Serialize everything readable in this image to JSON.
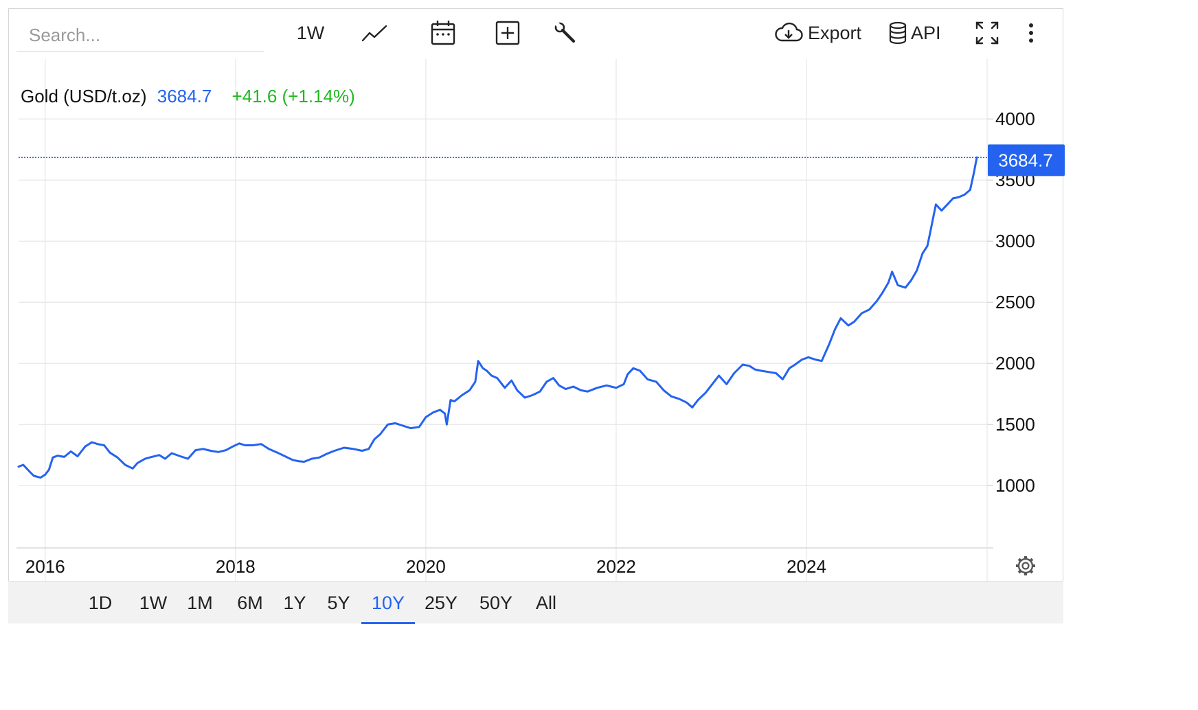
{
  "toolbar": {
    "search_placeholder": "Search...",
    "interval_label": "1W",
    "export_label": "Export",
    "api_label": "API",
    "icons": [
      "line-chart-icon",
      "calendar-icon",
      "add-icon",
      "wrench-icon",
      "cloud-download-icon",
      "database-icon",
      "fullscreen-icon",
      "more-vertical-icon",
      "gear-icon"
    ]
  },
  "legend": {
    "name": "Gold (USD/t.oz)",
    "value": "3684.7",
    "change": "+41.6 (+1.14%)"
  },
  "price_label": "3684.7",
  "range_buttons": [
    "1D",
    "1W",
    "1M",
    "6M",
    "1Y",
    "5Y",
    "10Y",
    "25Y",
    "50Y",
    "All"
  ],
  "active_range": "10Y",
  "colors": {
    "series": "#2463f0",
    "change_positive": "#1fba1f",
    "grid": "#e6e6e6",
    "bottom_bar": "#f2f2f2"
  },
  "chart_data": {
    "type": "line",
    "title": "Gold (USD/t.oz)",
    "xlabel": "",
    "ylabel": "",
    "xlim": [
      2015.72,
      2025.79
    ],
    "ylim": [
      490,
      4490
    ],
    "x_ticks": [
      "2016",
      "2018",
      "2020",
      "2022",
      "2024"
    ],
    "y_ticks": [
      1000,
      1500,
      2000,
      2500,
      3000,
      3500,
      4000
    ],
    "grid": true,
    "last_value": 3684.7,
    "series": [
      {
        "name": "Gold",
        "x": [
          2015.72,
          2015.77,
          2015.83,
          2015.88,
          2015.95,
          2016.0,
          2016.04,
          2016.08,
          2016.13,
          2016.2,
          2016.27,
          2016.34,
          2016.42,
          2016.49,
          2016.55,
          2016.62,
          2016.68,
          2016.76,
          2016.84,
          2016.92,
          2016.97,
          2017.05,
          2017.12,
          2017.2,
          2017.26,
          2017.33,
          2017.42,
          2017.5,
          2017.58,
          2017.66,
          2017.74,
          2017.82,
          2017.9,
          2017.97,
          2018.04,
          2018.1,
          2018.18,
          2018.27,
          2018.35,
          2018.44,
          2018.52,
          2018.6,
          2018.66,
          2018.72,
          2018.8,
          2018.88,
          2018.96,
          2019.04,
          2019.14,
          2019.24,
          2019.33,
          2019.4,
          2019.46,
          2019.52,
          2019.6,
          2019.68,
          2019.76,
          2019.84,
          2019.93,
          2020.0,
          2020.08,
          2020.15,
          2020.2,
          2020.22,
          2020.26,
          2020.3,
          2020.38,
          2020.46,
          2020.52,
          2020.55,
          2020.6,
          2020.64,
          2020.69,
          2020.75,
          2020.83,
          2020.9,
          2020.96,
          2021.04,
          2021.12,
          2021.2,
          2021.27,
          2021.34,
          2021.4,
          2021.47,
          2021.55,
          2021.63,
          2021.7,
          2021.8,
          2021.9,
          2022.0,
          2022.08,
          2022.12,
          2022.18,
          2022.25,
          2022.33,
          2022.42,
          2022.5,
          2022.58,
          2022.66,
          2022.74,
          2022.8,
          2022.86,
          2022.94,
          2023.02,
          2023.08,
          2023.16,
          2023.24,
          2023.33,
          2023.4,
          2023.46,
          2023.52,
          2023.6,
          2023.68,
          2023.75,
          2023.82,
          2023.88,
          2023.95,
          2024.02,
          2024.1,
          2024.16,
          2024.24,
          2024.3,
          2024.36,
          2024.44,
          2024.5,
          2024.58,
          2024.66,
          2024.74,
          2024.8,
          2024.86,
          2024.9,
          2024.96,
          2025.04,
          2025.1,
          2025.16,
          2025.22,
          2025.27,
          2025.3,
          2025.36,
          2025.42,
          2025.48,
          2025.54,
          2025.6,
          2025.66,
          2025.72,
          2025.76,
          2025.79
        ],
        "y": [
          1155,
          1170,
          1120,
          1080,
          1065,
          1090,
          1130,
          1230,
          1245,
          1235,
          1280,
          1240,
          1320,
          1355,
          1340,
          1330,
          1270,
          1230,
          1170,
          1140,
          1185,
          1220,
          1235,
          1250,
          1220,
          1265,
          1240,
          1220,
          1290,
          1300,
          1285,
          1275,
          1290,
          1320,
          1345,
          1330,
          1330,
          1340,
          1300,
          1270,
          1240,
          1210,
          1200,
          1195,
          1220,
          1230,
          1260,
          1285,
          1310,
          1300,
          1285,
          1300,
          1380,
          1420,
          1500,
          1510,
          1490,
          1470,
          1480,
          1560,
          1600,
          1620,
          1590,
          1500,
          1700,
          1690,
          1740,
          1780,
          1850,
          2020,
          1960,
          1940,
          1900,
          1880,
          1800,
          1860,
          1780,
          1720,
          1740,
          1770,
          1850,
          1880,
          1820,
          1790,
          1810,
          1780,
          1770,
          1800,
          1820,
          1800,
          1830,
          1910,
          1960,
          1940,
          1870,
          1850,
          1780,
          1730,
          1710,
          1680,
          1640,
          1700,
          1760,
          1840,
          1900,
          1830,
          1920,
          1990,
          1980,
          1950,
          1940,
          1930,
          1920,
          1870,
          1960,
          1990,
          2030,
          2050,
          2030,
          2020,
          2160,
          2280,
          2370,
          2310,
          2340,
          2410,
          2440,
          2510,
          2580,
          2660,
          2750,
          2640,
          2620,
          2680,
          2760,
          2900,
          2960,
          3070,
          3300,
          3250,
          3300,
          3350,
          3360,
          3380,
          3420,
          3560,
          3684.7
        ]
      }
    ]
  }
}
